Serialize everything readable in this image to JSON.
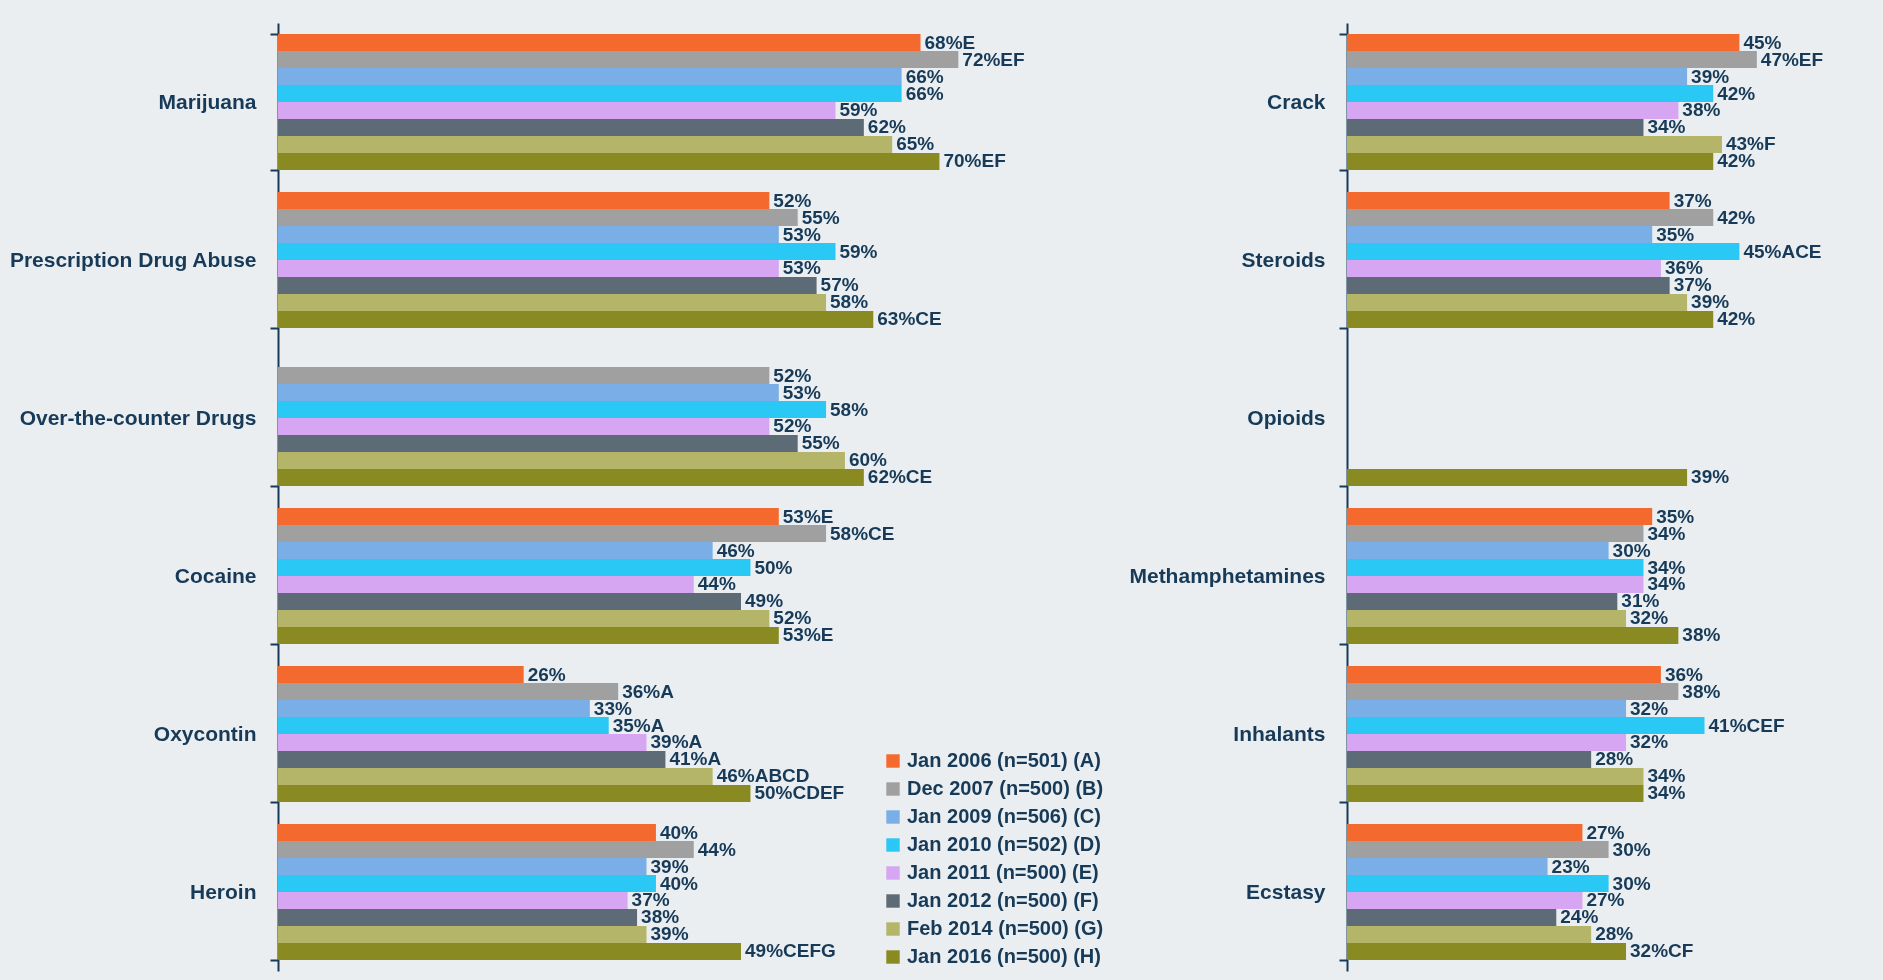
{
  "chart_data": [
    {
      "type": "bar",
      "orientation": "horizontal",
      "legend": "bottom right",
      "categories": [
        "Marijuana",
        "Prescription Drug Abuse",
        "Over-the-counter Drugs",
        "Cocaine",
        "Oxycontin",
        "Heroin"
      ],
      "series": [
        {
          "name": "Jan 2006 (n=501) (A)",
          "color": "#f46a2e",
          "values": [
            68,
            52,
            null,
            53,
            26,
            40
          ],
          "value_labels": [
            "68%E",
            "52%",
            null,
            "53%E",
            "26%",
            "40%"
          ]
        },
        {
          "name": "Dec 2007 (n=500) (B)",
          "color": "#a0a0a0",
          "values": [
            72,
            55,
            52,
            58,
            36,
            44
          ],
          "value_labels": [
            "72%EF",
            "55%",
            "52%",
            "58%CE",
            "36%A",
            "44%"
          ]
        },
        {
          "name": "Jan 2009 (n=506) (C)",
          "color": "#7aaee6",
          "values": [
            66,
            53,
            53,
            46,
            33,
            39
          ],
          "value_labels": [
            "66%",
            "53%",
            "53%",
            "46%",
            "33%",
            "39%"
          ]
        },
        {
          "name": "Jan 2010 (n=502) (D)",
          "color": "#29c8f5",
          "values": [
            66,
            59,
            58,
            50,
            35,
            40
          ],
          "value_labels": [
            "66%",
            "59%",
            "58%",
            "50%",
            "35%A",
            "40%"
          ]
        },
        {
          "name": "Jan 2011 (n=500) (E)",
          "color": "#d6a6f2",
          "values": [
            59,
            53,
            52,
            44,
            39,
            37
          ],
          "value_labels": [
            "59%",
            "53%",
            "52%",
            "44%",
            "39%A",
            "37%"
          ]
        },
        {
          "name": "Jan 2012 (n=500) (F)",
          "color": "#5c6b76",
          "values": [
            62,
            57,
            55,
            49,
            41,
            38
          ],
          "value_labels": [
            "62%",
            "57%",
            "55%",
            "49%",
            "41%A",
            "38%"
          ]
        },
        {
          "name": "Feb 2014 (n=500) (G)",
          "color": "#b5b56a",
          "values": [
            65,
            58,
            60,
            52,
            46,
            39
          ],
          "value_labels": [
            "65%",
            "58%",
            "60%",
            "52%",
            "46%ABCD",
            "39%"
          ]
        },
        {
          "name": "Jan 2016 (n=500) (H)",
          "color": "#8a8a22",
          "values": [
            70,
            63,
            62,
            53,
            50,
            49
          ],
          "value_labels": [
            "70%EF",
            "63%CE",
            "62%CE",
            "53%E",
            "50%CDEF",
            "49%CEFG"
          ]
        }
      ]
    },
    {
      "type": "bar",
      "orientation": "horizontal",
      "categories": [
        "Crack",
        "Steroids",
        "Opioids",
        "Methamphetamines",
        "Inhalants",
        "Ecstasy"
      ],
      "series": [
        {
          "color": "#f46a2e",
          "values": [
            45,
            37,
            null,
            35,
            36,
            27
          ],
          "value_labels": [
            "45%",
            "37%",
            null,
            "35%",
            "36%",
            "27%"
          ]
        },
        {
          "color": "#a0a0a0",
          "values": [
            47,
            42,
            null,
            34,
            38,
            30
          ],
          "value_labels": [
            "47%EF",
            "42%",
            null,
            "34%",
            "38%",
            "30%"
          ]
        },
        {
          "color": "#7aaee6",
          "values": [
            39,
            35,
            null,
            30,
            32,
            23
          ],
          "value_labels": [
            "39%",
            "35%",
            null,
            "30%",
            "32%",
            "23%"
          ]
        },
        {
          "color": "#29c8f5",
          "values": [
            42,
            45,
            null,
            34,
            41,
            30
          ],
          "value_labels": [
            "42%",
            "45%ACE",
            null,
            "34%",
            "41%CEF",
            "30%"
          ]
        },
        {
          "color": "#d6a6f2",
          "values": [
            38,
            36,
            null,
            34,
            32,
            27
          ],
          "value_labels": [
            "38%",
            "36%",
            null,
            "34%",
            "32%",
            "27%"
          ]
        },
        {
          "color": "#5c6b76",
          "values": [
            34,
            37,
            null,
            31,
            28,
            24
          ],
          "value_labels": [
            "34%",
            "37%",
            null,
            "31%",
            "28%",
            "24%"
          ]
        },
        {
          "color": "#b5b56a",
          "values": [
            43,
            39,
            null,
            32,
            34,
            28
          ],
          "value_labels": [
            "43%F",
            "39%",
            null,
            "32%",
            "34%",
            "28%"
          ]
        },
        {
          "color": "#8a8a22",
          "values": [
            42,
            42,
            39,
            38,
            34,
            32
          ],
          "value_labels": [
            "42%",
            "42%",
            "39%",
            "38%",
            "34%",
            "32%CF"
          ]
        }
      ]
    }
  ]
}
